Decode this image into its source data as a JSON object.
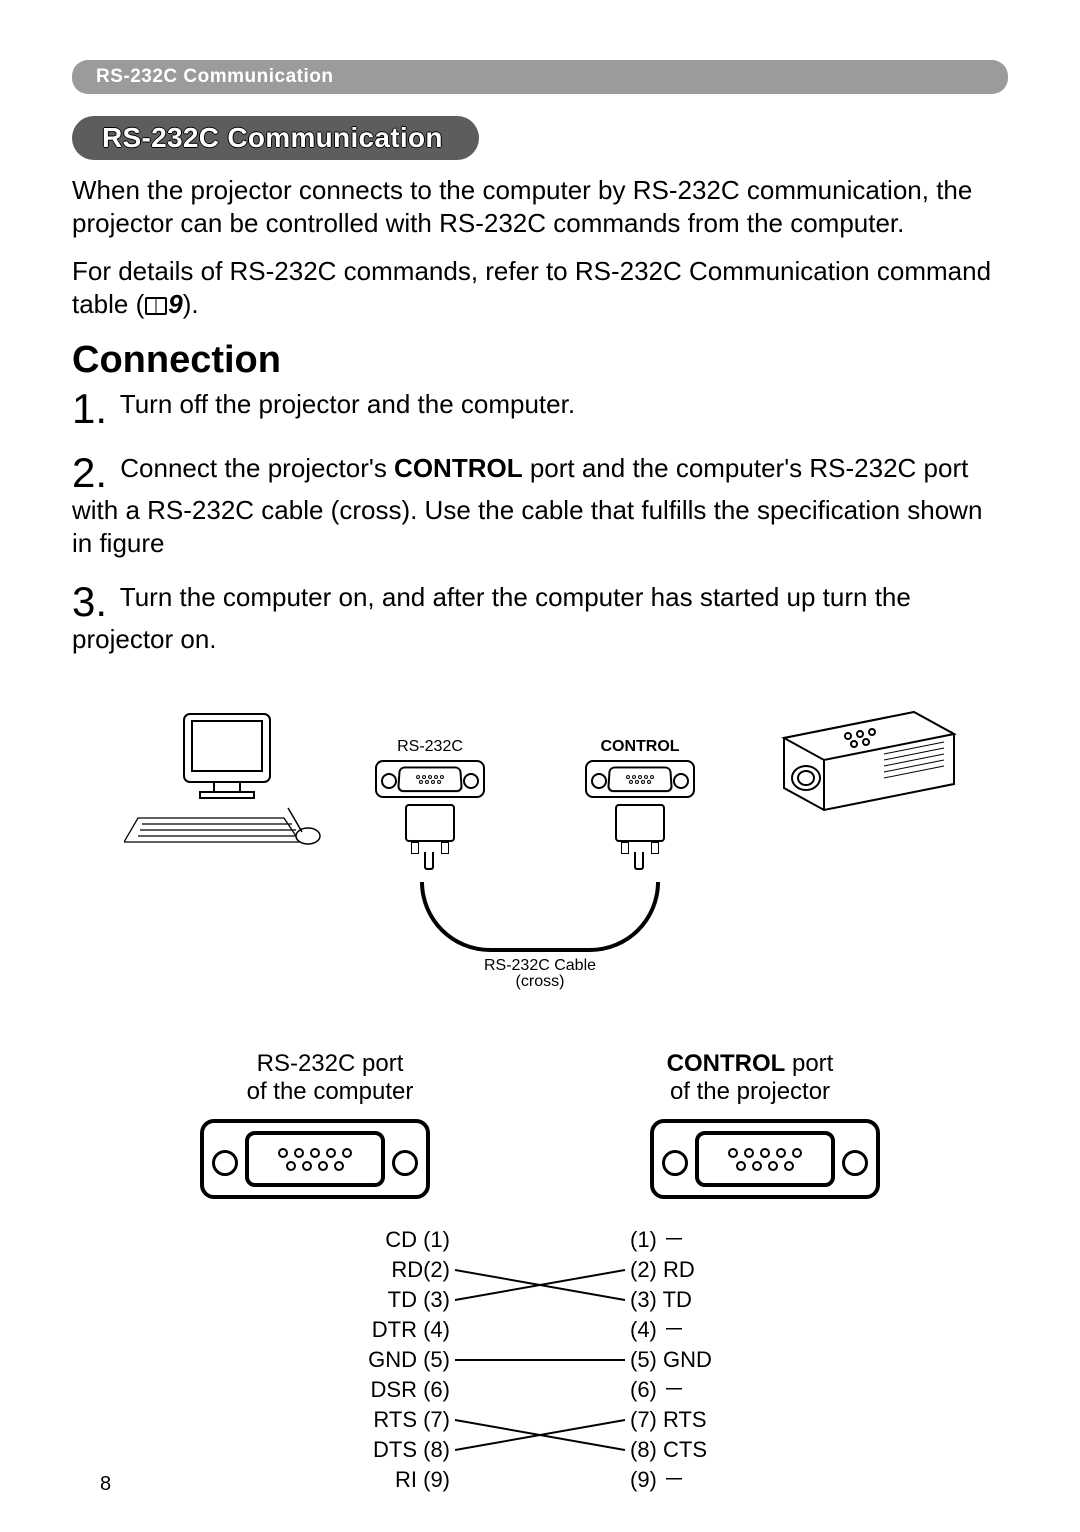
{
  "breadcrumb": "RS-232C Communication",
  "section_title": "RS-232C Communication",
  "intro_line1": "When the projector connects to the computer by RS-232C communication, the projector can be controlled with RS-232C commands from the computer.",
  "intro_line2_a": "For details of RS-232C commands, refer to RS-232C Communication command table (",
  "intro_line2_ref": "9",
  "intro_line2_b": ").",
  "h_connection": "Connection",
  "steps": [
    {
      "n": "1.",
      "text": "Turn off the projector and the computer."
    },
    {
      "n": "2.",
      "text_a": "Connect the projector's ",
      "bold": "CONTROL",
      "text_b": " port and the computer's RS-232C port with a RS-232C cable (cross). Use the cable that fulfills the specification shown in figure"
    },
    {
      "n": "3.",
      "text": "Turn the computer on, and after the computer has started up turn the projector on."
    }
  ],
  "diagram": {
    "computer_port_label": "RS-232C",
    "projector_port_label": "CONTROL",
    "cable_caption_l1": "RS-232C Cable",
    "cable_caption_l2": "(cross)"
  },
  "pinout": {
    "left_header_l1": "RS-232C port",
    "left_header_l2": "of the computer",
    "right_header_l1_bold": "CONTROL",
    "right_header_l1_rest": " port",
    "right_header_l2": "of the projector",
    "rows": [
      {
        "l": "CD (1)",
        "r": "(1) －",
        "link": "none"
      },
      {
        "l": "RD(2)",
        "r": "(2) RD",
        "link": "cross_a"
      },
      {
        "l": "TD (3)",
        "r": "(3) TD",
        "link": "cross_b"
      },
      {
        "l": "DTR (4)",
        "r": "(4) －",
        "link": "none"
      },
      {
        "l": "GND (5)",
        "r": "(5) GND",
        "link": "straight"
      },
      {
        "l": "DSR (6)",
        "r": "(6) －",
        "link": "none"
      },
      {
        "l": "RTS (7)",
        "r": "(7) RTS",
        "link": "cross_c"
      },
      {
        "l": "DTS (8)",
        "r": "(8) CTS",
        "link": "cross_d"
      },
      {
        "l": "RI (9)",
        "r": "(9) －",
        "link": "none"
      }
    ],
    "line_color": "#000000",
    "line_width": 2
  },
  "page_number": "8"
}
